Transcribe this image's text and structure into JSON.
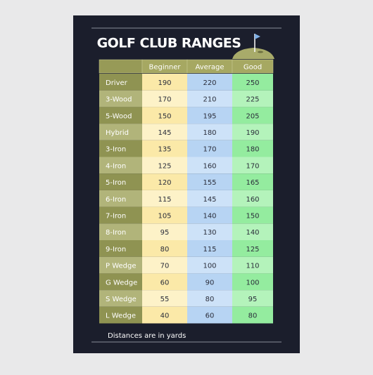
{
  "header": {
    "title": "GOLF CLUB RANGES"
  },
  "table": {
    "columns": [
      "Beginner",
      "Average",
      "Good"
    ],
    "rows": [
      [
        "Driver",
        190,
        220,
        250
      ],
      [
        "3-Wood",
        170,
        210,
        225
      ],
      [
        "5-Wood",
        150,
        195,
        205
      ],
      [
        "Hybrid",
        145,
        180,
        190
      ],
      [
        "3-Iron",
        135,
        170,
        180
      ],
      [
        "4-Iron",
        125,
        160,
        170
      ],
      [
        "5-Iron",
        120,
        155,
        165
      ],
      [
        "6-Iron",
        115,
        145,
        160
      ],
      [
        "7-Iron",
        105,
        140,
        150
      ],
      [
        "8-Iron",
        95,
        130,
        140
      ],
      [
        "9-Iron",
        80,
        115,
        125
      ],
      [
        "P Wedge",
        70,
        100,
        110
      ],
      [
        "G Wedge",
        60,
        90,
        100
      ],
      [
        "S Wedge",
        55,
        80,
        95
      ],
      [
        "L Wedge",
        40,
        60,
        80
      ]
    ]
  },
  "footer": {
    "note": "Distances are in yards"
  }
}
